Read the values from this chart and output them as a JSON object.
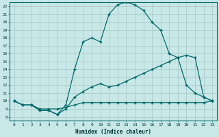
{
  "xlabel": "Humidex (Indice chaleur)",
  "background_color": "#c8e8e8",
  "grid_color": "#b0d0d0",
  "line_color": "#006868",
  "xlim": [
    -0.5,
    23.5
  ],
  "ylim": [
    7.5,
    22.5
  ],
  "xticks": [
    0,
    1,
    2,
    3,
    4,
    5,
    6,
    7,
    8,
    9,
    10,
    11,
    12,
    13,
    14,
    15,
    16,
    17,
    18,
    19,
    20,
    21,
    22,
    23
  ],
  "yticks": [
    8,
    9,
    10,
    11,
    12,
    13,
    14,
    15,
    16,
    17,
    18,
    19,
    20,
    21,
    22
  ],
  "line2_x": [
    0,
    1,
    2,
    3,
    4,
    5,
    6,
    7,
    8,
    9,
    10,
    11,
    12,
    13,
    14,
    15,
    16,
    17,
    18,
    19,
    20,
    21,
    22,
    23
  ],
  "line2_y": [
    10.0,
    9.5,
    9.5,
    8.8,
    8.8,
    8.3,
    9.5,
    14.0,
    17.5,
    18.0,
    17.5,
    21.0,
    22.2,
    22.5,
    22.2,
    21.5,
    20.0,
    19.0,
    16.0,
    15.5,
    12.0,
    11.0,
    10.5,
    10.0
  ],
  "line1_x": [
    0,
    1,
    2,
    3,
    4,
    5,
    6,
    7,
    8,
    9,
    10,
    11,
    12,
    13,
    14,
    15,
    16,
    17,
    18,
    19,
    20,
    21,
    22,
    23
  ],
  "line1_y": [
    10.0,
    9.5,
    9.5,
    8.8,
    8.8,
    8.3,
    9.0,
    10.5,
    11.2,
    11.8,
    12.2,
    11.8,
    12.0,
    12.5,
    13.0,
    13.5,
    14.0,
    14.5,
    15.0,
    15.5,
    15.8,
    15.5,
    10.5,
    10.0
  ],
  "line3_x": [
    0,
    1,
    2,
    3,
    4,
    5,
    6,
    7,
    8,
    9,
    10,
    11,
    12,
    13,
    14,
    15,
    16,
    17,
    18,
    19,
    20,
    21,
    22,
    23
  ],
  "line3_y": [
    10.0,
    9.5,
    9.5,
    9.0,
    9.0,
    9.0,
    9.2,
    9.5,
    9.8,
    9.8,
    9.8,
    9.8,
    9.8,
    9.8,
    9.8,
    9.8,
    9.8,
    9.8,
    9.8,
    9.8,
    9.8,
    9.8,
    9.8,
    10.0
  ]
}
